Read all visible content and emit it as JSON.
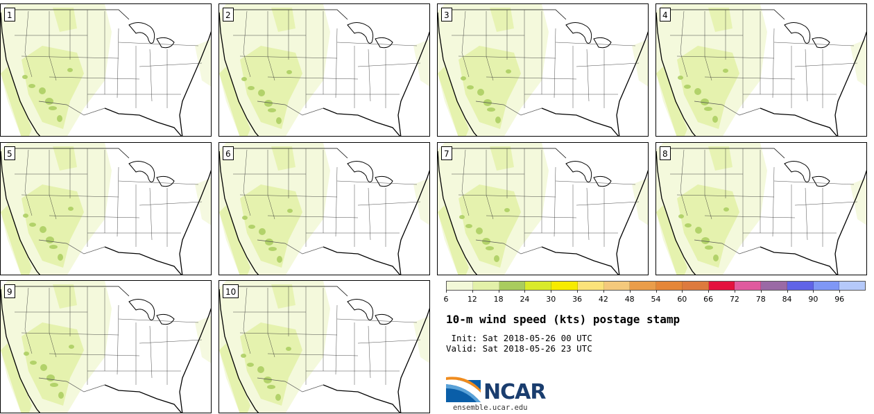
{
  "panels": [
    {
      "label": "1"
    },
    {
      "label": "2"
    },
    {
      "label": "3"
    },
    {
      "label": "4"
    },
    {
      "label": "5"
    },
    {
      "label": "6"
    },
    {
      "label": "7"
    },
    {
      "label": "8"
    },
    {
      "label": "9"
    },
    {
      "label": "10"
    }
  ],
  "colorbar": {
    "colors": [
      "#f3f8d8",
      "#e3f1a9",
      "#a9cc5e",
      "#d9ea2a",
      "#f7eb00",
      "#fbe27a",
      "#f4c97c",
      "#ea9d4a",
      "#e58638",
      "#dd7a3e",
      "#e3123e",
      "#e05a9e",
      "#9a6aa5",
      "#6064e7",
      "#7f97f5",
      "#b5c9fa"
    ],
    "ticks": [
      "6",
      "12",
      "18",
      "24",
      "30",
      "36",
      "42",
      "48",
      "54",
      "60",
      "66",
      "72",
      "78",
      "84",
      "90",
      "96"
    ]
  },
  "title": "10-m wind speed (kts) postage stamp",
  "init_line": " Init: Sat 2018-05-26 00 UTC",
  "valid_line": "Valid: Sat 2018-05-26 23 UTC",
  "logo_text": "NCAR",
  "site": "ensemble.ucar.edu"
}
